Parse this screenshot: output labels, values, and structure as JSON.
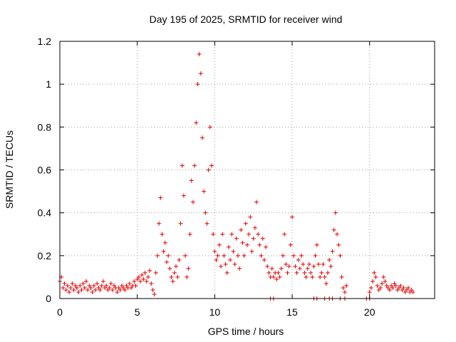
{
  "chart_data": {
    "type": "scatter",
    "title": "Day 195 of 2025, SRMTID for receiver wind",
    "xlabel": "GPS time / hours",
    "ylabel": "SRMTID / TECUs",
    "xlim": [
      0,
      24.2
    ],
    "ylim": [
      0,
      1.2
    ],
    "x_ticks": [
      0,
      5,
      10,
      15,
      20
    ],
    "x_tick_labels": [
      "0",
      "5",
      "10",
      "15",
      "20"
    ],
    "y_ticks": [
      0,
      0.2,
      0.4,
      0.6,
      0.8,
      1.0,
      1.2
    ],
    "y_tick_labels": [
      "0",
      "0.2",
      "0.4",
      "0.6",
      "0.8",
      "1",
      "1.2"
    ],
    "grid": true,
    "marker": "plus",
    "color": "#e00000",
    "series": [
      {
        "name": "SRMTID",
        "points": [
          [
            0.0,
            0.08
          ],
          [
            0.1,
            0.1
          ],
          [
            0.2,
            0.05
          ],
          [
            0.3,
            0.07
          ],
          [
            0.4,
            0.04
          ],
          [
            0.5,
            0.06
          ],
          [
            0.6,
            0.03
          ],
          [
            0.7,
            0.05
          ],
          [
            0.8,
            0.07
          ],
          [
            0.9,
            0.04
          ],
          [
            1.0,
            0.06
          ],
          [
            1.1,
            0.05
          ],
          [
            1.2,
            0.03
          ],
          [
            1.3,
            0.06
          ],
          [
            1.4,
            0.04
          ],
          [
            1.5,
            0.07
          ],
          [
            1.6,
            0.05
          ],
          [
            1.7,
            0.08
          ],
          [
            1.8,
            0.04
          ],
          [
            1.9,
            0.06
          ],
          [
            2.0,
            0.05
          ],
          [
            2.1,
            0.03
          ],
          [
            2.2,
            0.06
          ],
          [
            2.3,
            0.04
          ],
          [
            2.4,
            0.07
          ],
          [
            2.5,
            0.05
          ],
          [
            2.6,
            0.04
          ],
          [
            2.7,
            0.06
          ],
          [
            2.8,
            0.08
          ],
          [
            2.9,
            0.05
          ],
          [
            3.0,
            0.06
          ],
          [
            3.1,
            0.04
          ],
          [
            3.2,
            0.05
          ],
          [
            3.3,
            0.07
          ],
          [
            3.4,
            0.04
          ],
          [
            3.5,
            0.06
          ],
          [
            3.6,
            0.05
          ],
          [
            3.7,
            0.03
          ],
          [
            3.8,
            0.05
          ],
          [
            3.9,
            0.04
          ],
          [
            4.0,
            0.06
          ],
          [
            4.1,
            0.05
          ],
          [
            4.2,
            0.04
          ],
          [
            4.3,
            0.06
          ],
          [
            4.4,
            0.05
          ],
          [
            4.5,
            0.07
          ],
          [
            4.6,
            0.05
          ],
          [
            4.7,
            0.06
          ],
          [
            4.8,
            0.08
          ],
          [
            4.9,
            0.06
          ],
          [
            5.0,
            0.09
          ],
          [
            5.1,
            0.1
          ],
          [
            5.2,
            0.08
          ],
          [
            5.3,
            0.11
          ],
          [
            5.4,
            0.09
          ],
          [
            5.5,
            0.12
          ],
          [
            5.6,
            0.08
          ],
          [
            5.7,
            0.1
          ],
          [
            5.8,
            0.13
          ],
          [
            5.9,
            0.07
          ],
          [
            6.0,
            0.04
          ],
          [
            6.1,
            0.02
          ],
          [
            6.2,
            0.12
          ],
          [
            6.3,
            0.2
          ],
          [
            6.4,
            0.35
          ],
          [
            6.5,
            0.47
          ],
          [
            6.6,
            0.3
          ],
          [
            6.7,
            0.22
          ],
          [
            6.8,
            0.26
          ],
          [
            6.9,
            0.17
          ],
          [
            7.0,
            0.2
          ],
          [
            7.1,
            0.14
          ],
          [
            7.2,
            0.1
          ],
          [
            7.3,
            0.08
          ],
          [
            7.4,
            0.12
          ],
          [
            7.5,
            0.15
          ],
          [
            7.6,
            0.1
          ],
          [
            7.7,
            0.18
          ],
          [
            7.8,
            0.35
          ],
          [
            7.9,
            0.62
          ],
          [
            8.0,
            0.48
          ],
          [
            8.1,
            0.2
          ],
          [
            8.2,
            0.1
          ],
          [
            8.3,
            0.14
          ],
          [
            8.4,
            0.3
          ],
          [
            8.5,
            0.55
          ],
          [
            8.6,
            0.45
          ],
          [
            8.7,
            0.62
          ],
          [
            8.8,
            0.82
          ],
          [
            8.9,
            1.0
          ],
          [
            9.0,
            1.14
          ],
          [
            9.1,
            1.05
          ],
          [
            9.2,
            0.75
          ],
          [
            9.3,
            0.5
          ],
          [
            9.4,
            0.4
          ],
          [
            9.5,
            0.35
          ],
          [
            9.6,
            0.6
          ],
          [
            9.7,
            0.8
          ],
          [
            9.8,
            0.62
          ],
          [
            9.9,
            0.3
          ],
          [
            10.0,
            0.22
          ],
          [
            10.1,
            0.18
          ],
          [
            10.2,
            0.2
          ],
          [
            10.3,
            0.25
          ],
          [
            10.4,
            0.15
          ],
          [
            10.5,
            0.3
          ],
          [
            10.6,
            0.2
          ],
          [
            10.7,
            0.16
          ],
          [
            10.8,
            0.12
          ],
          [
            10.9,
            0.24
          ],
          [
            11.0,
            0.18
          ],
          [
            11.1,
            0.3
          ],
          [
            11.2,
            0.22
          ],
          [
            11.3,
            0.16
          ],
          [
            11.4,
            0.28
          ],
          [
            11.5,
            0.2
          ],
          [
            11.6,
            0.14
          ],
          [
            11.7,
            0.32
          ],
          [
            11.8,
            0.26
          ],
          [
            11.9,
            0.2
          ],
          [
            12.0,
            0.35
          ],
          [
            12.1,
            0.25
          ],
          [
            12.2,
            0.3
          ],
          [
            12.3,
            0.38
          ],
          [
            12.4,
            0.22
          ],
          [
            12.5,
            0.28
          ],
          [
            12.6,
            0.33
          ],
          [
            12.7,
            0.45
          ],
          [
            12.8,
            0.3
          ],
          [
            12.9,
            0.25
          ],
          [
            13.0,
            0.2
          ],
          [
            13.1,
            0.28
          ],
          [
            13.2,
            0.18
          ],
          [
            13.3,
            0.24
          ],
          [
            13.4,
            0.15
          ],
          [
            13.5,
            0.12
          ],
          [
            13.6,
            0.1
          ],
          [
            13.7,
            0.14
          ],
          [
            13.8,
            0.1
          ],
          [
            13.9,
            0.12
          ],
          [
            14.0,
            0.09
          ],
          [
            14.1,
            0.12
          ],
          [
            14.2,
            0.1
          ],
          [
            14.3,
            0.14
          ],
          [
            14.4,
            0.2
          ],
          [
            14.5,
            0.3
          ],
          [
            14.6,
            0.16
          ],
          [
            14.7,
            0.12
          ],
          [
            14.8,
            0.15
          ],
          [
            14.9,
            0.25
          ],
          [
            15.0,
            0.38
          ],
          [
            15.1,
            0.2
          ],
          [
            15.2,
            0.15
          ],
          [
            15.3,
            0.12
          ],
          [
            15.4,
            0.18
          ],
          [
            15.5,
            0.14
          ],
          [
            15.6,
            0.2
          ],
          [
            15.7,
            0.16
          ],
          [
            15.8,
            0.12
          ],
          [
            15.9,
            0.1
          ],
          [
            16.0,
            0.14
          ],
          [
            16.1,
            0.16
          ],
          [
            16.2,
            0.12
          ],
          [
            16.3,
            0.1
          ],
          [
            16.4,
            0.15
          ],
          [
            16.5,
            0.2
          ],
          [
            16.6,
            0.25
          ],
          [
            16.7,
            0.16
          ],
          [
            16.8,
            0.1
          ],
          [
            16.9,
            0.12
          ],
          [
            17.0,
            0.16
          ],
          [
            17.1,
            0.1
          ],
          [
            17.2,
            0.07
          ],
          [
            17.3,
            0.12
          ],
          [
            17.4,
            0.18
          ],
          [
            17.5,
            0.15
          ],
          [
            17.6,
            0.22
          ],
          [
            17.7,
            0.32
          ],
          [
            17.8,
            0.4
          ],
          [
            17.9,
            0.3
          ],
          [
            18.0,
            0.25
          ],
          [
            18.1,
            0.2
          ],
          [
            18.2,
            0.1
          ],
          [
            18.3,
            0.05
          ],
          [
            18.4,
            0.03
          ],
          [
            18.5,
            0.06
          ],
          [
            20.0,
            0.03
          ],
          [
            20.1,
            0.05
          ],
          [
            20.2,
            0.08
          ],
          [
            20.3,
            0.12
          ],
          [
            20.4,
            0.1
          ],
          [
            20.5,
            0.06
          ],
          [
            20.6,
            0.04
          ],
          [
            20.7,
            0.05
          ],
          [
            20.8,
            0.07
          ],
          [
            20.9,
            0.1
          ],
          [
            21.0,
            0.08
          ],
          [
            21.1,
            0.06
          ],
          [
            21.2,
            0.05
          ],
          [
            21.3,
            0.04
          ],
          [
            21.4,
            0.06
          ],
          [
            21.5,
            0.05
          ],
          [
            21.6,
            0.07
          ],
          [
            21.7,
            0.06
          ],
          [
            21.8,
            0.04
          ],
          [
            21.9,
            0.05
          ],
          [
            22.0,
            0.06
          ],
          [
            22.1,
            0.04
          ],
          [
            22.2,
            0.05
          ],
          [
            22.3,
            0.03
          ],
          [
            22.4,
            0.04
          ],
          [
            22.5,
            0.05
          ],
          [
            22.6,
            0.03
          ],
          [
            22.7,
            0.04
          ],
          [
            22.8,
            0.03
          ],
          [
            13.6,
            0.0
          ],
          [
            13.8,
            0.0
          ],
          [
            16.4,
            0.0
          ],
          [
            16.6,
            0.0
          ],
          [
            17.1,
            0.0
          ],
          [
            17.4,
            0.0
          ],
          [
            17.6,
            0.0
          ],
          [
            18.1,
            0.0
          ],
          [
            18.4,
            0.0
          ],
          [
            19.8,
            0.0
          ],
          [
            20.0,
            0.0
          ]
        ]
      }
    ]
  }
}
